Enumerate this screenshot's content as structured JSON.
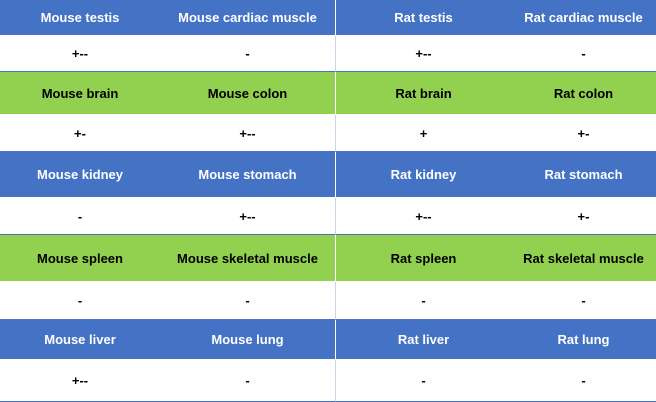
{
  "rows": [
    {
      "style": "blue",
      "cells": [
        "Mouse testis",
        "Mouse cardiac muscle",
        "Rat testis",
        "Rat cardiac muscle"
      ]
    },
    {
      "style": "value",
      "cells": [
        "+--",
        "-",
        "+--",
        "-"
      ]
    },
    {
      "style": "green",
      "cells": [
        "Mouse brain",
        "Mouse colon",
        "Rat brain",
        "Rat colon"
      ]
    },
    {
      "style": "value",
      "cells": [
        "+-",
        "+--",
        "+",
        "+-"
      ]
    },
    {
      "style": "blue",
      "cells": [
        "Mouse kidney",
        "Mouse stomach",
        "Rat kidney",
        "Rat stomach"
      ]
    },
    {
      "style": "value",
      "cells": [
        "-",
        "+--",
        "+--",
        "+-"
      ]
    },
    {
      "style": "green",
      "cells": [
        "Mouse spleen",
        "Mouse skeletal muscle",
        "Rat spleen",
        "Rat skeletal muscle"
      ]
    },
    {
      "style": "value",
      "cells": [
        "-",
        "-",
        "-",
        "-"
      ]
    },
    {
      "style": "blue",
      "cells": [
        "Mouse liver",
        "Mouse lung",
        "Rat liver",
        "Rat lung"
      ]
    },
    {
      "style": "value",
      "cells": [
        "+--",
        "-",
        "-",
        "-"
      ]
    }
  ],
  "colors": {
    "blue": "#4472c4",
    "green": "#92d050",
    "value_bg": "#ffffff"
  }
}
